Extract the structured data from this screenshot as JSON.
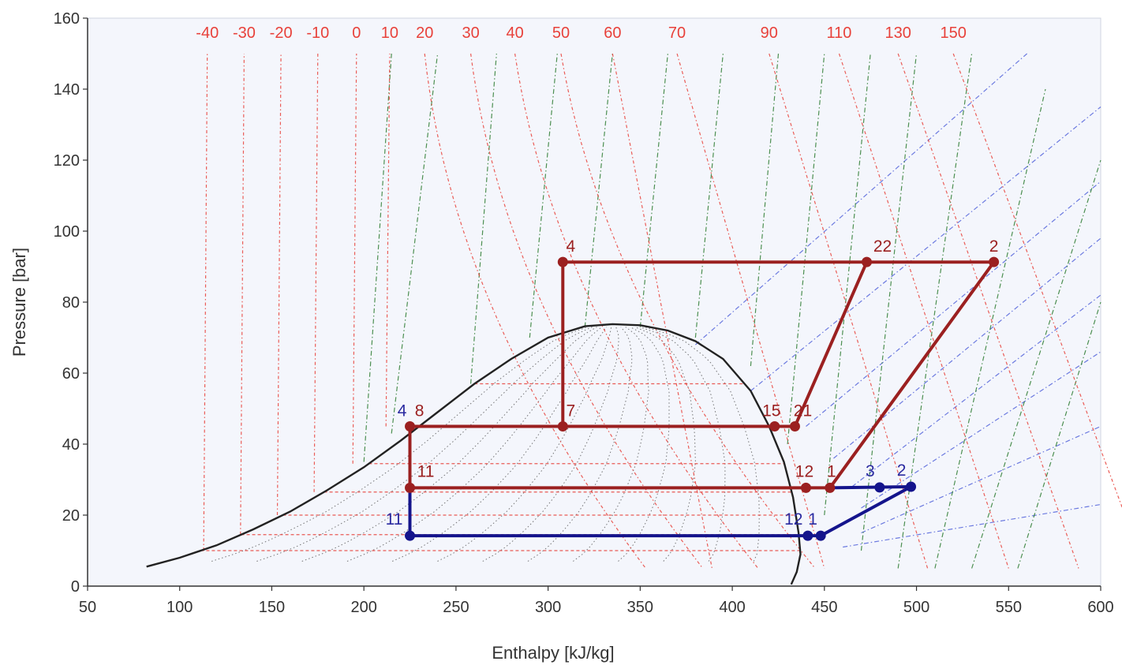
{
  "chart_data": {
    "type": "line",
    "title": "",
    "xlabel": "Enthalpy [kJ/kg]",
    "ylabel": "Pressure [bar]",
    "xlim": [
      50,
      600
    ],
    "ylim": [
      0,
      160
    ],
    "x_ticks": [
      50,
      100,
      150,
      200,
      250,
      300,
      350,
      400,
      450,
      500,
      550,
      600
    ],
    "y_ticks": [
      0,
      20,
      40,
      60,
      80,
      100,
      120,
      140,
      160
    ],
    "x_tick_labels": [
      "50",
      "100",
      "150",
      "200",
      "250",
      "300",
      "350",
      "400",
      "450",
      "500",
      "550",
      "600"
    ],
    "y_tick_labels": [
      "0",
      "20",
      "40",
      "60",
      "80",
      "100",
      "120",
      "140",
      "160"
    ],
    "isotherm_labels": [
      {
        "text": "-40",
        "h": 115
      },
      {
        "text": "-30",
        "h": 135
      },
      {
        "text": "-20",
        "h": 155
      },
      {
        "text": "-10",
        "h": 175
      },
      {
        "text": "0",
        "h": 196
      },
      {
        "text": "10",
        "h": 214
      },
      {
        "text": "20",
        "h": 233
      },
      {
        "text": "30",
        "h": 258
      },
      {
        "text": "40",
        "h": 282
      },
      {
        "text": "50",
        "h": 307
      },
      {
        "text": "60",
        "h": 335
      },
      {
        "text": "70",
        "h": 370
      },
      {
        "text": "90",
        "h": 420
      },
      {
        "text": "110",
        "h": 458
      },
      {
        "text": "130",
        "h": 490
      },
      {
        "text": "150",
        "h": 520
      }
    ],
    "saturation_dome": {
      "h": [
        82,
        100,
        120,
        140,
        160,
        180,
        200,
        220,
        240,
        260,
        280,
        300,
        320,
        335,
        350,
        365,
        380,
        395,
        410,
        420,
        428,
        433,
        436,
        437,
        435,
        432
      ],
      "p": [
        5.5,
        8,
        11.5,
        16,
        21,
        27,
        33.5,
        41,
        49,
        57,
        64,
        70,
        73.2,
        73.8,
        73.5,
        72,
        69,
        64,
        55,
        45,
        35,
        25,
        15,
        9,
        4,
        0.5
      ]
    },
    "series": [
      {
        "name": "",
        "color": "#9b2020",
        "segments": [
          {
            "h": [
              225,
              225,
              453
            ],
            "p": [
              45,
              27.7,
              27.7
            ]
          },
          {
            "h": [
              225,
              434,
              473,
              542,
              453
            ],
            "p": [
              45,
              45,
              91.3,
              91.3,
              27.7
            ]
          },
          {
            "h": [
              308,
              308,
              473
            ],
            "p": [
              45,
              91.3,
              91.3
            ]
          }
        ],
        "points": [
          {
            "label": "4",
            "h": 308,
            "p": 91.3
          },
          {
            "label": "22",
            "h": 473,
            "p": 91.3
          },
          {
            "label": "2",
            "h": 542,
            "p": 91.3
          },
          {
            "label": "8",
            "h": 225,
            "p": 45
          },
          {
            "label": "7",
            "h": 308,
            "p": 45
          },
          {
            "label": "15",
            "h": 423,
            "p": 45
          },
          {
            "label": "21",
            "h": 434,
            "p": 45
          },
          {
            "label": "11",
            "h": 225,
            "p": 27.7
          },
          {
            "label": "12",
            "h": 440,
            "p": 27.7
          },
          {
            "label": "1",
            "h": 453,
            "p": 27.7
          }
        ]
      },
      {
        "name": "",
        "color": "#14148c",
        "segments": [
          {
            "h": [
              225,
              225,
              441,
              448,
              497,
              453
            ],
            "p": [
              27.7,
              14.2,
              14.2,
              14.2,
              28,
              27.7
            ]
          }
        ],
        "points": [
          {
            "label": "4",
            "h": 225,
            "p": 45
          },
          {
            "label": "11",
            "h": 225,
            "p": 14.2
          },
          {
            "label": "12",
            "h": 441,
            "p": 14.2
          },
          {
            "label": "1",
            "h": 448,
            "p": 14.2
          },
          {
            "label": "3",
            "h": 480,
            "p": 27.8
          },
          {
            "label": "2",
            "h": 497,
            "p": 28
          }
        ]
      }
    ],
    "grid": false,
    "legend": "none"
  },
  "colors": {
    "isotherm": "#e8413a",
    "isentrope": "#2e7d32",
    "isochore": "#4a5bd8",
    "quality": "#555555",
    "dome": "#222222",
    "cycle_high": "#9b2020",
    "cycle_low": "#14148c",
    "plot_bg": "#f4f6fc"
  }
}
